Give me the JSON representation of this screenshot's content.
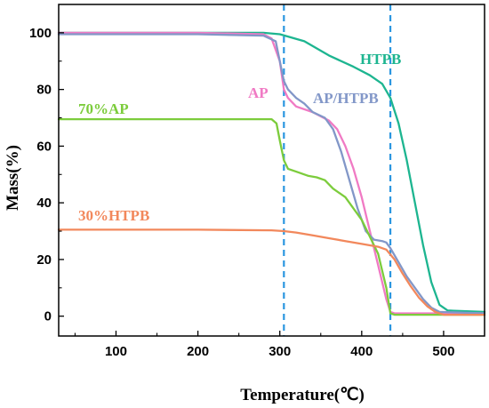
{
  "chart_data": {
    "type": "line",
    "xlabel": "Temperature(℃)",
    "ylabel": "Mass(%)",
    "xlim": [
      30,
      550
    ],
    "ylim": [
      -7,
      110
    ],
    "xticks": [
      100,
      200,
      300,
      400,
      500
    ],
    "yticks": [
      0,
      20,
      40,
      60,
      80,
      100
    ],
    "grid": false,
    "legend": "none",
    "reference_lines_x": [
      305,
      435
    ],
    "series": [
      {
        "name": "HTPB",
        "color": "#1db590",
        "x": [
          30,
          200,
          280,
          300,
          330,
          360,
          390,
          410,
          425,
          435,
          445,
          455,
          465,
          475,
          485,
          495,
          505,
          550
        ],
        "y": [
          100,
          100,
          100,
          99.5,
          97,
          92,
          88,
          85,
          82,
          77,
          68,
          55,
          40,
          25,
          12,
          4,
          2,
          1.5
        ]
      },
      {
        "name": "AP",
        "color": "#f07ac4",
        "x": [
          30,
          200,
          280,
          290,
          300,
          305,
          310,
          320,
          340,
          360,
          370,
          380,
          390,
          400,
          410,
          420,
          430,
          435,
          440,
          460,
          480,
          500,
          550
        ],
        "y": [
          100,
          100,
          99.5,
          98,
          90,
          80,
          77,
          74,
          72,
          69,
          66,
          60,
          52,
          42,
          30,
          18,
          6,
          1.5,
          1,
          1,
          1,
          1,
          1
        ]
      },
      {
        "name": "AP/HTPB",
        "color": "#8297c8",
        "x": [
          30,
          200,
          280,
          295,
          300,
          305,
          310,
          320,
          330,
          340,
          355,
          365,
          375,
          385,
          395,
          405,
          415,
          425,
          430,
          435,
          445,
          455,
          465,
          475,
          485,
          495,
          550
        ],
        "y": [
          99.5,
          99.5,
          99,
          97,
          90,
          83,
          80,
          77,
          75,
          72,
          70,
          66,
          58,
          48,
          38,
          30,
          27,
          26.5,
          26,
          24,
          19,
          14,
          10,
          6,
          3,
          1.5,
          1
        ]
      },
      {
        "name": "70%AP",
        "color": "#7ccc3c",
        "x": [
          30,
          200,
          290,
          296,
          300,
          305,
          310,
          320,
          335,
          345,
          355,
          365,
          380,
          400,
          420,
          430,
          435,
          440,
          500,
          550
        ],
        "y": [
          69.5,
          69.5,
          69.5,
          68,
          62,
          55,
          52,
          51,
          49.5,
          49,
          48,
          45,
          42,
          34,
          22,
          10,
          1,
          0.5,
          0.5,
          0.5
        ]
      },
      {
        "name": "30%HTPB",
        "color": "#f2885c",
        "x": [
          30,
          200,
          290,
          305,
          320,
          340,
          360,
          380,
          400,
          420,
          430,
          440,
          450,
          460,
          470,
          480,
          490,
          500,
          550
        ],
        "y": [
          30.5,
          30.5,
          30.3,
          30,
          29.5,
          28.5,
          27.5,
          26.5,
          25.5,
          24.5,
          23.5,
          20,
          15,
          10.5,
          6.5,
          3.5,
          1.5,
          0.5,
          0.5
        ]
      }
    ]
  }
}
